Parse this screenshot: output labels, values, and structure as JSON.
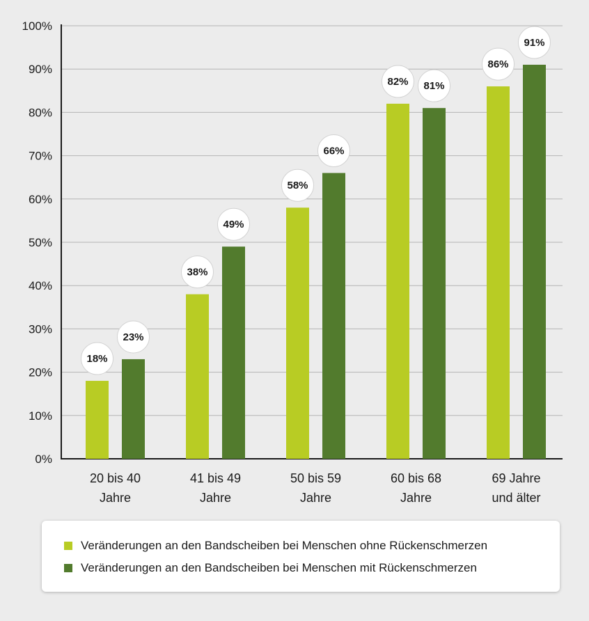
{
  "chart_data": {
    "type": "bar",
    "title": "",
    "xlabel": "",
    "ylabel": "",
    "ylim": [
      0,
      100
    ],
    "y_ticks": [
      "0%",
      "10%",
      "20%",
      "30%",
      "40%",
      "50%",
      "60%",
      "70%",
      "80%",
      "90%",
      "100%"
    ],
    "grid": true,
    "categories": [
      [
        "20 bis 40",
        "Jahre"
      ],
      [
        "41 bis 49",
        "Jahre"
      ],
      [
        "50 bis 59",
        "Jahre"
      ],
      [
        "60 bis 68",
        "Jahre"
      ],
      [
        "69 Jahre",
        "und älter"
      ]
    ],
    "series": [
      {
        "name": "Veränderungen an den Bandscheiben bei Menschen ohne Rückenschmerzen",
        "color": "#b8cc24",
        "values": [
          18,
          38,
          58,
          82,
          86
        ],
        "labels": [
          "18%",
          "38%",
          "58%",
          "82%",
          "86%"
        ]
      },
      {
        "name": "Veränderungen an den Bandscheiben bei Menschen mit Rückenschmerzen",
        "color": "#527b2d",
        "values": [
          23,
          49,
          66,
          81,
          91
        ],
        "labels": [
          "23%",
          "49%",
          "66%",
          "81%",
          "91%"
        ]
      }
    ],
    "legend_placement": "bottom"
  }
}
